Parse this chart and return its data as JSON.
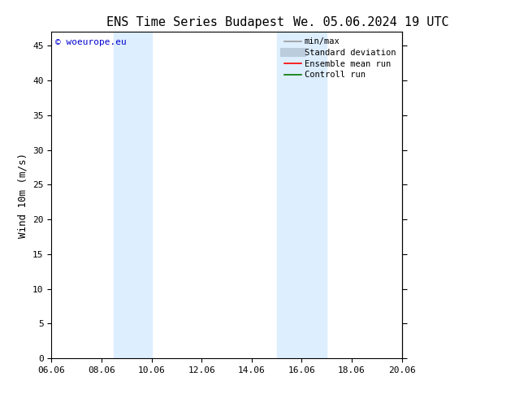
{
  "title_left": "ENS Time Series Budapest",
  "title_right": "We. 05.06.2024 19 UTC",
  "ylabel": "Wind 10m (m/s)",
  "xtick_labels": [
    "06.06",
    "08.06",
    "10.06",
    "12.06",
    "14.06",
    "16.06",
    "18.06",
    "20.06"
  ],
  "xtick_positions": [
    0,
    2,
    4,
    6,
    8,
    10,
    12,
    14
  ],
  "xlim": [
    0,
    14
  ],
  "ylim": [
    0,
    47
  ],
  "ytick_positions": [
    0,
    5,
    10,
    15,
    20,
    25,
    30,
    35,
    40,
    45
  ],
  "ytick_labels": [
    "0",
    "5",
    "10",
    "15",
    "20",
    "25",
    "30",
    "35",
    "40",
    "45"
  ],
  "shaded_bands": [
    {
      "x_start": 2.5,
      "x_end": 4.0
    },
    {
      "x_start": 9.0,
      "x_end": 11.0
    }
  ],
  "shade_color": "#ddeeff",
  "bg_color": "#ffffff",
  "watermark_text": "© woeurope.eu",
  "watermark_color": "#0000cc",
  "legend_entries": [
    {
      "label": "min/max",
      "color": "#999999",
      "lw": 1.2
    },
    {
      "label": "Standard deviation",
      "color": "#bbccdd",
      "lw": 8
    },
    {
      "label": "Ensemble mean run",
      "color": "#ff0000",
      "lw": 1.2
    },
    {
      "label": "Controll run",
      "color": "#007700",
      "lw": 1.2
    }
  ],
  "title_fontsize": 11,
  "axis_fontsize": 9,
  "tick_fontsize": 8,
  "legend_fontsize": 7.5,
  "watermark_fontsize": 8
}
